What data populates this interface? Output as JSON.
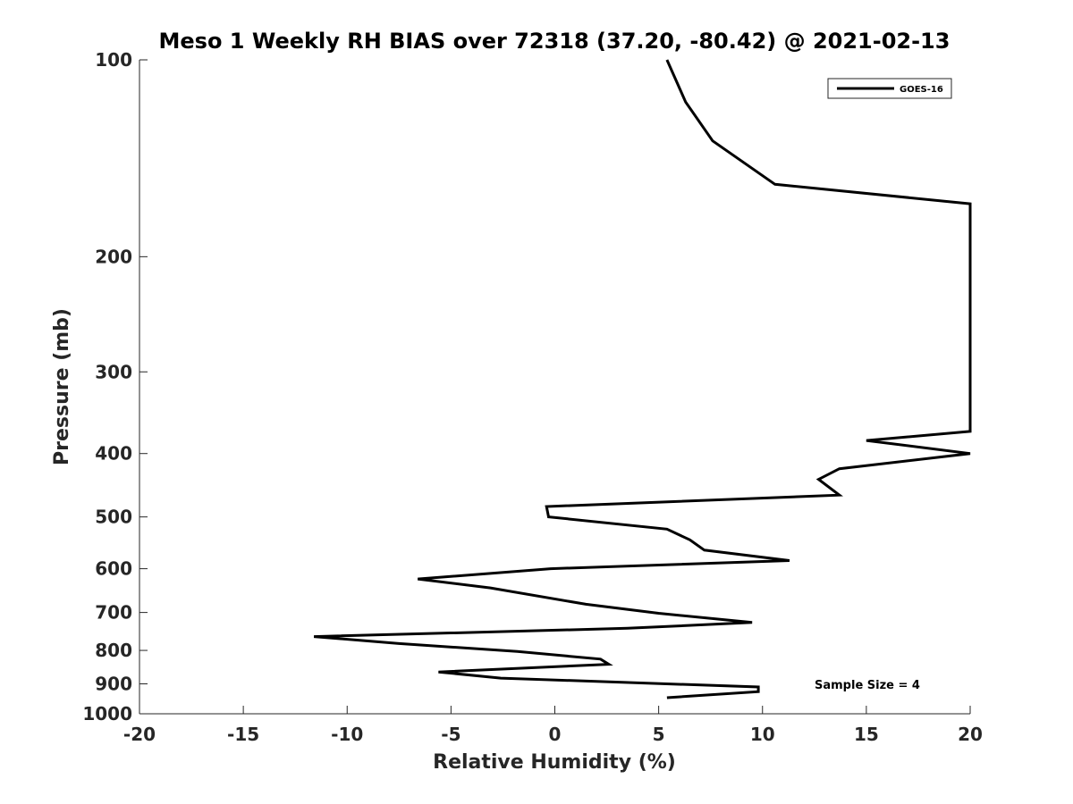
{
  "chart_data": {
    "type": "line",
    "title": "Meso 1 Weekly RH BIAS over 72318 (37.20, -80.42) @ 2021-02-13",
    "xlabel": "Relative Humidity (%)",
    "ylabel": "Pressure (mb)",
    "xlim": [
      -20,
      20
    ],
    "ylim": [
      100,
      1000
    ],
    "y_scale": "log",
    "y_reversed": true,
    "grid": false,
    "legend_position": "top-right",
    "x_ticks": [
      "-20",
      "-15",
      "-10",
      "-5",
      "0",
      "5",
      "10",
      "15",
      "20"
    ],
    "y_ticks": [
      "100",
      "200",
      "300",
      "400",
      "500",
      "600",
      "700",
      "800",
      "900",
      "1000"
    ],
    "line_color": "#000000",
    "series": [
      {
        "name": "GOES-16",
        "x": [
          5.4,
          6.3,
          7.6,
          10.6,
          20,
          20,
          15.0,
          20,
          13.7,
          12.7,
          13.7,
          -0.4,
          -0.3,
          5.4,
          6.5,
          7.2,
          11.3,
          -0.2,
          -6.6,
          -3.1,
          1.5,
          5.0,
          9.5,
          3.5,
          -11.6,
          -7.5,
          -1.8,
          2.2,
          2.6,
          -5.6,
          -2.6,
          9.8,
          9.8,
          5.4
        ],
        "y": [
          100,
          116,
          133,
          155,
          166,
          370,
          382,
          400,
          422,
          438,
          463,
          482,
          500,
          522,
          542,
          562,
          583,
          600,
          622,
          642,
          680,
          702,
          725,
          740,
          762,
          781,
          803,
          825,
          840,
          863,
          882,
          910,
          925,
          945
        ]
      }
    ],
    "annotations": [
      {
        "text": "Sample Size = 4"
      }
    ]
  }
}
